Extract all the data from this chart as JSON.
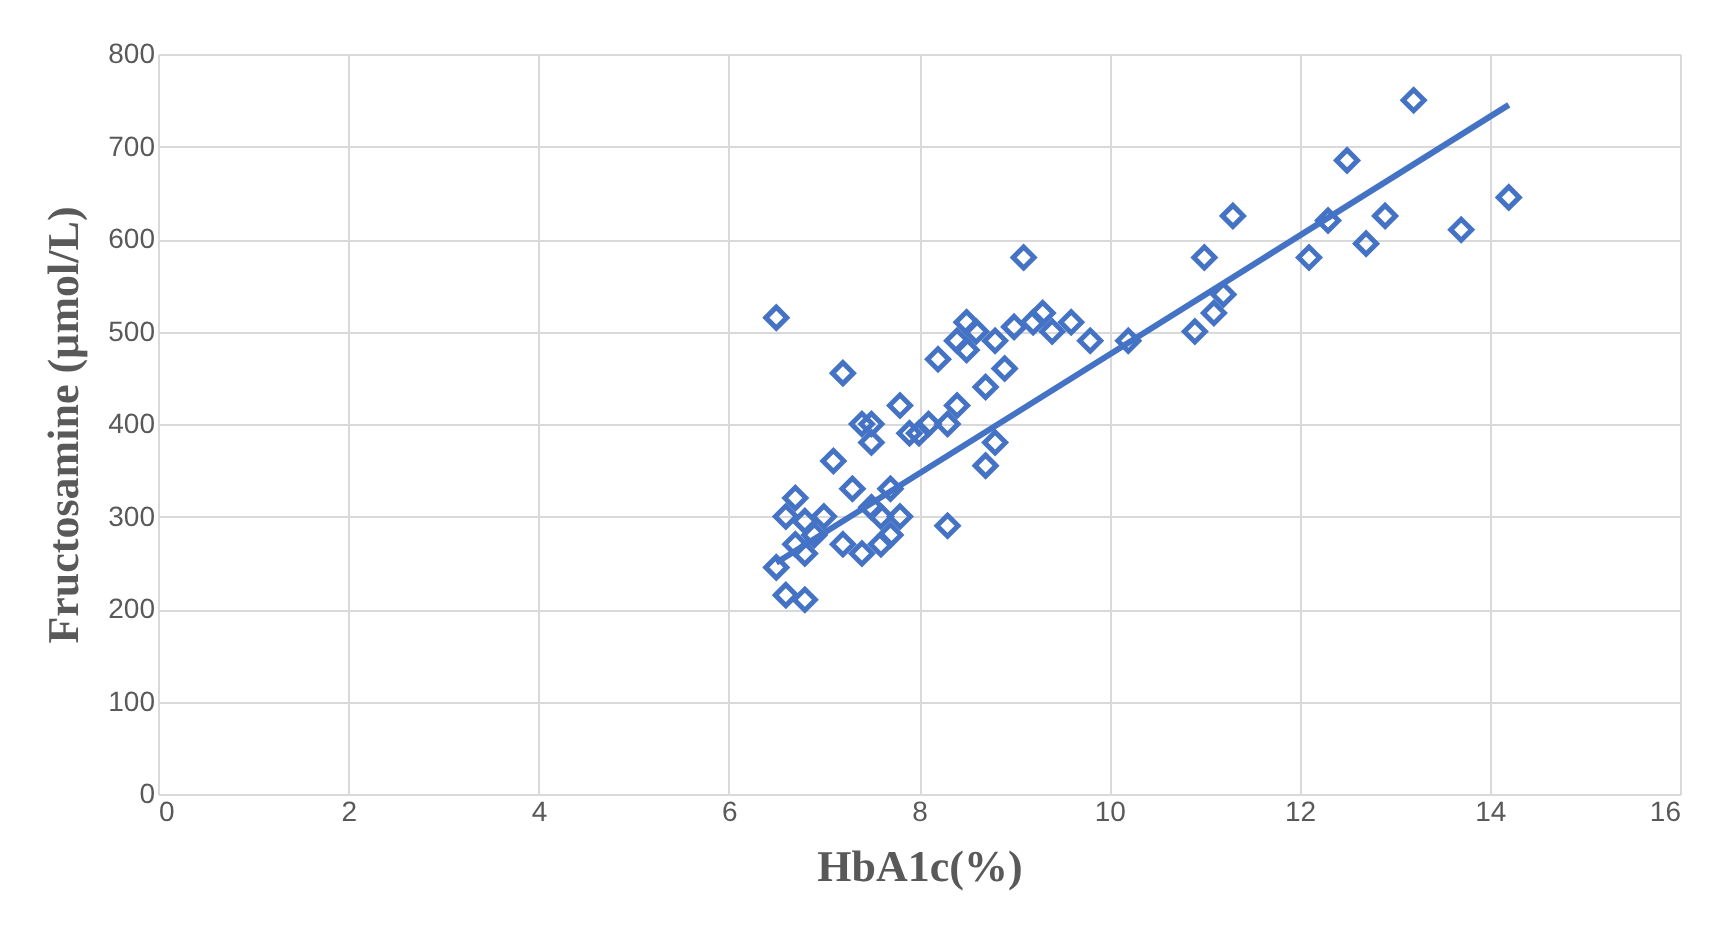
{
  "chart_data": {
    "type": "scatter",
    "xlabel": "HbA1c(%)",
    "ylabel": "Fructosamine (µmol/L)",
    "xlim": [
      0,
      16
    ],
    "xticks": [
      0,
      2,
      4,
      6,
      8,
      10,
      12,
      14,
      16
    ],
    "ylim": [
      0,
      800
    ],
    "yticks": [
      0,
      100,
      200,
      300,
      400,
      500,
      600,
      700,
      800
    ],
    "grid": true,
    "series": [
      {
        "marker": "diamond",
        "color": "#4472c4",
        "x": [
          6.5,
          6.6,
          6.5,
          6.6,
          6.8,
          6.7,
          6.8,
          6.9,
          7.0,
          6.7,
          6.8,
          7.1,
          7.2,
          7.2,
          7.3,
          7.4,
          7.4,
          7.5,
          7.5,
          7.6,
          7.6,
          7.7,
          7.7,
          7.8,
          7.8,
          7.5,
          7.9,
          8.0,
          8.1,
          8.2,
          8.3,
          8.3,
          8.4,
          8.4,
          8.5,
          8.5,
          8.6,
          8.7,
          8.7,
          8.8,
          8.8,
          8.9,
          9.0,
          9.1,
          9.2,
          9.3,
          9.4,
          9.6,
          9.8,
          10.2,
          10.9,
          11.0,
          11.1,
          11.2,
          11.3,
          12.1,
          12.3,
          12.5,
          12.7,
          12.9,
          13.2,
          13.7,
          14.2
        ],
        "values": [
          515,
          300,
          245,
          215,
          210,
          320,
          295,
          280,
          300,
          270,
          260,
          360,
          455,
          270,
          330,
          400,
          260,
          310,
          380,
          300,
          270,
          330,
          280,
          420,
          300,
          400,
          390,
          390,
          400,
          470,
          290,
          400,
          490,
          420,
          510,
          480,
          500,
          440,
          355,
          380,
          490,
          460,
          505,
          580,
          510,
          520,
          500,
          510,
          490,
          490,
          500,
          580,
          520,
          540,
          625,
          580,
          620,
          685,
          595,
          625,
          750,
          610,
          645
        ]
      },
      {
        "type": "line",
        "marker": "none",
        "line_style": "solid",
        "color": "#4472c4",
        "x": [
          6.5,
          14.2
        ],
        "values": [
          250,
          745
        ]
      }
    ]
  }
}
